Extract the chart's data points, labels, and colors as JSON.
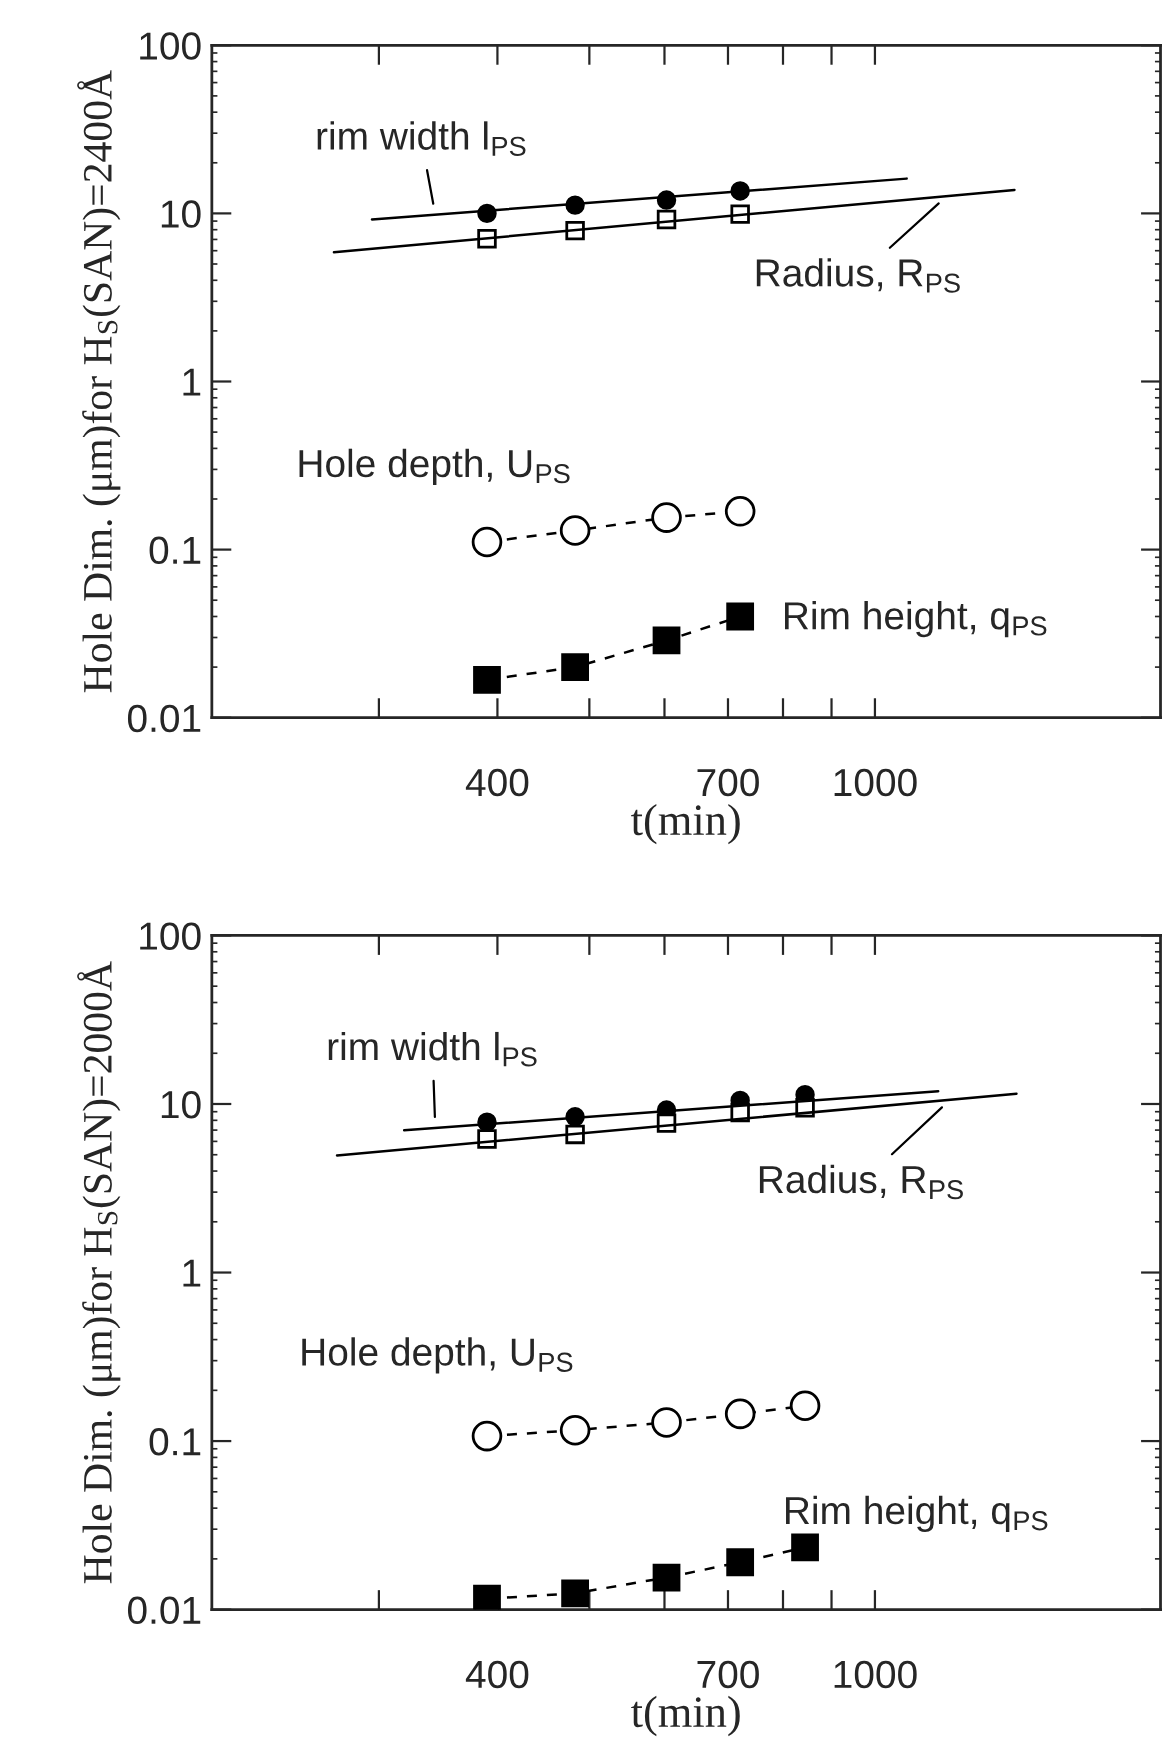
{
  "chart_data": [
    {
      "type": "scatter",
      "log": "xy",
      "xlabel": "t(min)",
      "ylabel": "Hole Dim. (μm)for H$_{S}$(SAN)=2400Å",
      "xlim": [
        200,
        2000
      ],
      "ylim": [
        0.01,
        100
      ],
      "xticks": [
        {
          "value": 300,
          "label": null
        },
        400,
        {
          "value": 500,
          "label": null
        },
        {
          "value": 600,
          "label": null
        },
        700,
        {
          "value": 800,
          "label": null
        },
        {
          "value": 900,
          "label": null
        },
        1000
      ],
      "yticks": [
        0.01,
        0.1,
        1,
        10,
        100
      ],
      "series": [
        {
          "marker": "circle",
          "color": "#000000",
          "x": [
            390,
            483,
            603,
            721
          ],
          "values": [
            10.0,
            11.2,
            12.0,
            13.6
          ]
        },
        {
          "marker": "square",
          "color": "#000000",
          "x": [
            390,
            483,
            603,
            721
          ],
          "values": [
            7.06,
            7.9,
            9.2,
            9.9
          ]
        },
        {
          "type": "line",
          "marker": "circle",
          "line_style": "dashed",
          "color": "#000000",
          "x": [
            390,
            483,
            603,
            721
          ],
          "values": [
            0.111,
            0.13,
            0.155,
            0.169
          ]
        },
        {
          "type": "line",
          "marker": "square",
          "line_style": "dashed",
          "color": "#000000",
          "x": [
            390,
            483,
            603,
            721
          ],
          "values": [
            0.0168,
            0.02,
            0.0288,
            0.04
          ]
        },
        {
          "type": "line",
          "marker": "none",
          "line_style": "solid",
          "color": "#000000",
          "x": [
            295,
            1080
          ],
          "values": [
            9.2,
            16.1
          ]
        },
        {
          "type": "line",
          "marker": "none",
          "line_style": "solid",
          "color": "#000000",
          "x": [
            269,
            1403
          ],
          "values": [
            5.87,
            13.8
          ]
        }
      ],
      "annotations": [
        {
          "text": "rim width l$_{PS}$",
          "x": 344,
          "y": 9.83
        },
        {
          "text": "Radius, R$_{PS}$",
          "x": 1191,
          "y": 12.7
        },
        {
          "text": "Hole depth, U$_{PS}$",
          "x": 390,
          "y": 0.111
        },
        {
          "text": "Rim height, q$_{PS}$",
          "x": 721,
          "y": 0.04
        }
      ]
    },
    {
      "type": "scatter",
      "log": "xy",
      "xlabel": "t(min)",
      "ylabel": "Hole Dim. (μm)for H$_{S}$(SAN)=2000Å",
      "xlim": [
        200,
        2000
      ],
      "ylim": [
        0.01,
        100
      ],
      "xticks": [
        {
          "value": 300,
          "label": null
        },
        400,
        {
          "value": 500,
          "label": null
        },
        {
          "value": 600,
          "label": null
        },
        700,
        {
          "value": 800,
          "label": null
        },
        {
          "value": 900,
          "label": null
        },
        1000
      ],
      "yticks": [
        0.01,
        0.1,
        1,
        10,
        100
      ],
      "series": [
        {
          "marker": "circle",
          "color": "#000000",
          "x": [
            390,
            483,
            603,
            721,
            844
          ],
          "values": [
            7.8,
            8.4,
            9.2,
            10.5,
            11.35
          ]
        },
        {
          "marker": "square",
          "color": "#000000",
          "x": [
            390,
            483,
            603,
            721,
            844
          ],
          "values": [
            6.2,
            6.6,
            7.7,
            8.9,
            9.5
          ]
        },
        {
          "type": "line",
          "marker": "circle",
          "line_style": "dashed",
          "color": "#000000",
          "x": [
            390,
            483,
            603,
            721,
            844
          ],
          "values": [
            0.107,
            0.116,
            0.129,
            0.145,
            0.162
          ]
        },
        {
          "type": "line",
          "marker": "square",
          "line_style": "dashed",
          "color": "#000000",
          "x": [
            390,
            483,
            603,
            721,
            844
          ],
          "values": [
            0.0116,
            0.0125,
            0.0155,
            0.0191,
            0.0234
          ]
        },
        {
          "type": "line",
          "marker": "none",
          "line_style": "solid",
          "color": "#000000",
          "x": [
            319,
            1166
          ],
          "values": [
            6.98,
            11.9
          ]
        },
        {
          "type": "line",
          "marker": "none",
          "line_style": "solid",
          "color": "#000000",
          "x": [
            271,
            1410
          ],
          "values": [
            4.95,
            11.5
          ]
        }
      ],
      "annotations": [
        {
          "text": "rim width l$_{PS}$",
          "x": 344,
          "y": 7.2
        },
        {
          "text": "Radius, R$_{PS}$",
          "x": 1200,
          "y": 10.6
        },
        {
          "text": "Hole depth, U$_{PS}$",
          "x": 390,
          "y": 0.107
        },
        {
          "text": "Rim height, q$_{PS}$",
          "x": 844,
          "y": 0.0234
        }
      ]
    }
  ]
}
